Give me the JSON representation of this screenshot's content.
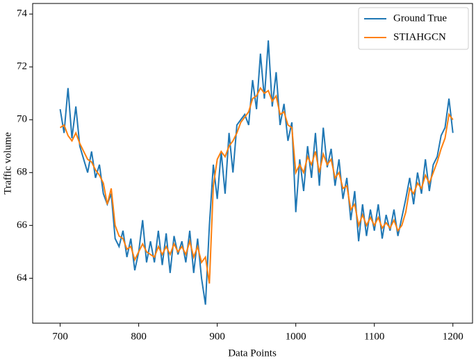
{
  "chart_data": {
    "type": "line",
    "xlabel": "Data Points",
    "ylabel": "Traffic volume",
    "x": [
      700,
      705,
      710,
      715,
      720,
      725,
      730,
      735,
      740,
      745,
      750,
      755,
      760,
      765,
      770,
      775,
      780,
      785,
      790,
      795,
      800,
      805,
      810,
      815,
      820,
      825,
      830,
      835,
      840,
      845,
      850,
      855,
      860,
      865,
      870,
      875,
      880,
      885,
      890,
      895,
      900,
      905,
      910,
      915,
      920,
      925,
      930,
      935,
      940,
      945,
      950,
      955,
      960,
      965,
      970,
      975,
      980,
      985,
      990,
      995,
      1000,
      1005,
      1010,
      1015,
      1020,
      1025,
      1030,
      1035,
      1040,
      1045,
      1050,
      1055,
      1060,
      1065,
      1070,
      1075,
      1080,
      1085,
      1090,
      1095,
      1100,
      1105,
      1110,
      1115,
      1120,
      1125,
      1130,
      1135,
      1140,
      1145,
      1150,
      1155,
      1160,
      1165,
      1170,
      1175,
      1180,
      1185,
      1190,
      1195,
      1200
    ],
    "series": [
      {
        "name": "Ground True",
        "color": "#1f77b4",
        "values": [
          70.4,
          69.5,
          71.2,
          69.3,
          70.5,
          69.0,
          68.5,
          68.0,
          68.8,
          67.8,
          68.3,
          67.2,
          66.8,
          67.2,
          65.5,
          65.2,
          65.8,
          64.8,
          65.5,
          64.3,
          65.0,
          66.2,
          64.6,
          65.4,
          64.6,
          65.8,
          64.5,
          65.7,
          64.2,
          65.6,
          64.9,
          65.4,
          64.6,
          65.8,
          64.2,
          65.5,
          64.0,
          63.0,
          66.0,
          68.3,
          67.0,
          68.8,
          67.2,
          69.5,
          68.0,
          69.8,
          70.0,
          70.2,
          69.8,
          71.5,
          70.4,
          72.5,
          70.8,
          73.0,
          70.5,
          71.8,
          69.8,
          70.6,
          69.2,
          69.9,
          66.5,
          68.5,
          67.3,
          69.0,
          67.8,
          69.5,
          67.5,
          69.7,
          68.2,
          68.9,
          67.5,
          68.5,
          67.0,
          67.8,
          66.2,
          67.3,
          65.4,
          66.8,
          65.6,
          66.6,
          65.8,
          66.8,
          65.5,
          66.4,
          65.8,
          66.6,
          65.6,
          66.3,
          67.0,
          67.8,
          66.8,
          68.0,
          67.2,
          68.5,
          67.3,
          68.3,
          68.6,
          69.4,
          69.7,
          70.8,
          69.5
        ]
      },
      {
        "name": "STIAHGCN",
        "color": "#ff7f0e",
        "values": [
          69.7,
          69.8,
          69.4,
          69.2,
          69.5,
          69.1,
          68.8,
          68.5,
          68.4,
          68.1,
          67.9,
          67.6,
          66.8,
          67.4,
          66.0,
          65.6,
          65.5,
          65.1,
          65.2,
          64.7,
          65.0,
          65.3,
          65.0,
          64.9,
          64.8,
          65.2,
          64.9,
          65.2,
          64.9,
          65.3,
          65.0,
          65.2,
          64.9,
          65.4,
          64.8,
          65.2,
          64.6,
          64.8,
          63.8,
          67.5,
          68.5,
          68.8,
          68.6,
          69.0,
          69.2,
          69.5,
          69.9,
          70.1,
          70.3,
          70.8,
          70.9,
          71.2,
          71.0,
          71.1,
          70.7,
          70.9,
          70.2,
          70.3,
          69.8,
          69.7,
          68.0,
          68.3,
          68.0,
          68.6,
          68.3,
          68.8,
          68.0,
          68.7,
          68.3,
          68.5,
          67.8,
          68.0,
          67.4,
          67.5,
          66.6,
          66.8,
          66.0,
          66.4,
          66.0,
          66.3,
          66.0,
          66.3,
          65.9,
          66.1,
          65.9,
          66.2,
          65.8,
          66.0,
          66.5,
          67.4,
          67.2,
          67.6,
          67.4,
          67.9,
          67.6,
          68.0,
          68.4,
          68.9,
          69.3,
          70.2,
          70.0
        ]
      }
    ],
    "xlim": [
      665,
      1225
    ],
    "ylim": [
      62.3,
      74.4
    ],
    "xticks": [
      700,
      800,
      900,
      1000,
      1100,
      1200
    ],
    "yticks": [
      64,
      66,
      68,
      70,
      72,
      74
    ],
    "legend": "upper right"
  }
}
